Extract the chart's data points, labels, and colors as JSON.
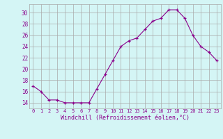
{
  "hours": [
    0,
    1,
    2,
    3,
    4,
    5,
    6,
    7,
    8,
    9,
    10,
    11,
    12,
    13,
    14,
    15,
    16,
    17,
    18,
    19,
    20,
    21,
    22,
    23
  ],
  "windchill": [
    17,
    16,
    14.5,
    14.5,
    14,
    14,
    14,
    14,
    16.5,
    19,
    21.5,
    24,
    25,
    25.5,
    27,
    28.5,
    29,
    30.5,
    30.5,
    29,
    26,
    24,
    23,
    21.5
  ],
  "line_color": "#8B008B",
  "marker": "+",
  "marker_color": "#8B008B",
  "bg_color": "#d4f5f5",
  "grid_color": "#aaaaaa",
  "xlabel": "Windchill (Refroidissement éolien,°C)",
  "xlabel_color": "#8B008B",
  "tick_color": "#8B008B",
  "yticks": [
    14,
    16,
    18,
    20,
    22,
    24,
    26,
    28,
    30
  ],
  "ylim": [
    13.0,
    31.5
  ],
  "xlim": [
    -0.5,
    23.5
  ]
}
